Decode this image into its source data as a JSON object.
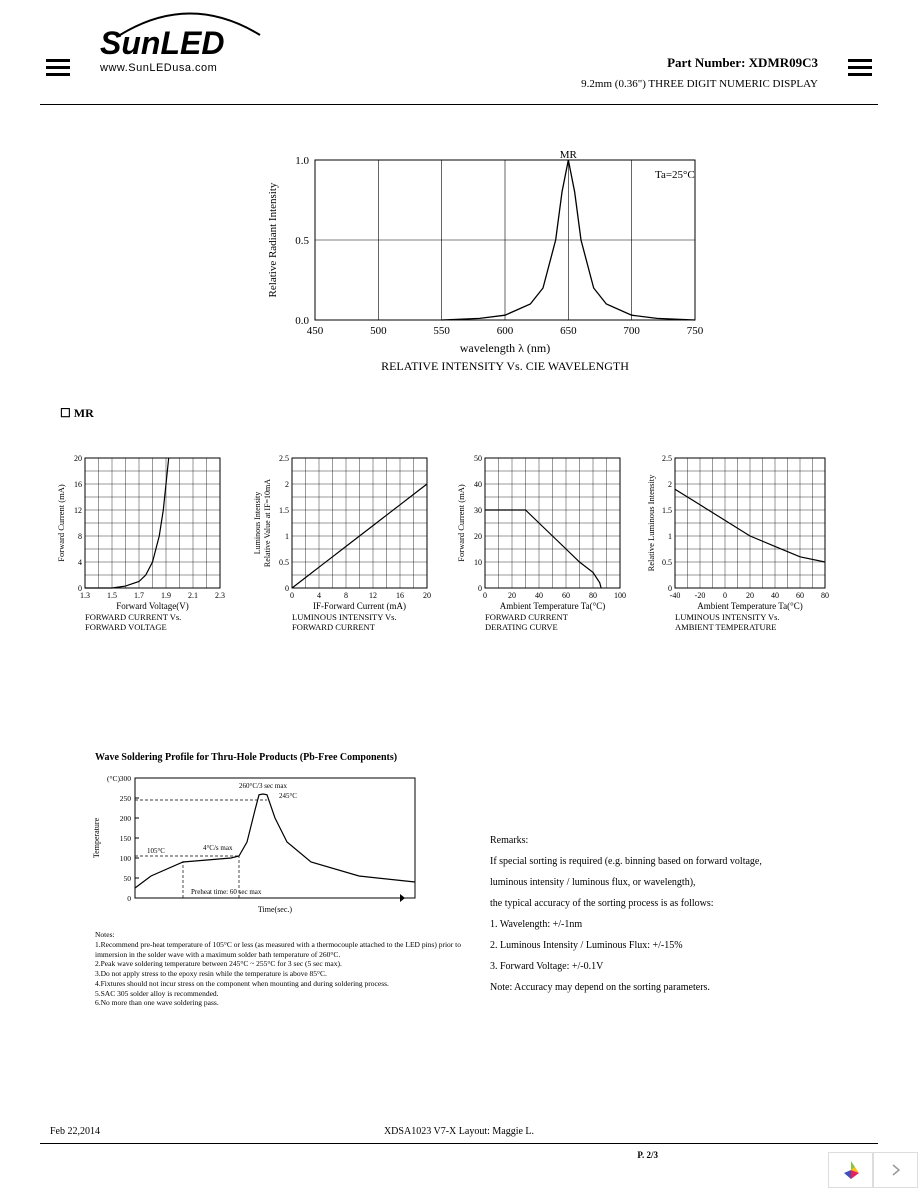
{
  "header": {
    "logo_main": "SunLED",
    "logo_url": "www.SunLEDusa.com",
    "part_label": "Part Number:",
    "part_number": "XDMR09C3",
    "part_desc": "9.2mm (0.36\") THREE DIGIT NUMERIC DISPLAY"
  },
  "section_mr": "MR",
  "chart_main": {
    "type": "line",
    "title": "RELATIVE INTENSITY Vs. CIE WAVELENGTH",
    "xlabel": "wavelength λ (nm)",
    "ylabel": "Relative Radiant Intensity",
    "xlim": [
      450,
      750
    ],
    "xtick_step": 50,
    "ylim": [
      0,
      1.0
    ],
    "ytick_step": 0.5,
    "annotation_peak": "MR",
    "annotation_ta": "Ta=25°C",
    "peak_x": 650,
    "curve": [
      [
        550,
        0
      ],
      [
        580,
        0.01
      ],
      [
        600,
        0.03
      ],
      [
        620,
        0.1
      ],
      [
        630,
        0.2
      ],
      [
        640,
        0.5
      ],
      [
        645,
        0.8
      ],
      [
        650,
        1.0
      ],
      [
        655,
        0.8
      ],
      [
        660,
        0.5
      ],
      [
        670,
        0.2
      ],
      [
        680,
        0.1
      ],
      [
        700,
        0.03
      ],
      [
        720,
        0.01
      ],
      [
        750,
        0
      ]
    ],
    "line_color": "#000000",
    "grid_color": "#000000",
    "background_color": "#ffffff"
  },
  "chart_iv": {
    "type": "line",
    "title1": "FORWARD CURRENT Vs.",
    "title2": "FORWARD VOLTAGE",
    "xlabel": "Forward Voltage(V)",
    "ylabel": "Forward Current (mA)",
    "xlim": [
      1.3,
      2.3
    ],
    "xticks": [
      1.3,
      1.5,
      1.7,
      1.9,
      2.1,
      2.3
    ],
    "ylim": [
      0,
      20
    ],
    "ytick_step": 4,
    "curve": [
      [
        1.3,
        0
      ],
      [
        1.5,
        0
      ],
      [
        1.6,
        0.3
      ],
      [
        1.7,
        1
      ],
      [
        1.75,
        2
      ],
      [
        1.8,
        4
      ],
      [
        1.85,
        8
      ],
      [
        1.88,
        12
      ],
      [
        1.9,
        16
      ],
      [
        1.92,
        20
      ]
    ],
    "line_color": "#000000"
  },
  "chart_li": {
    "type": "line",
    "title1": "LUMINOUS INTENSITY Vs.",
    "title2": "FORWARD CURRENT",
    "xlabel": "IF-Forward Current (mA)",
    "ylabel1": "Luminous Intensity",
    "ylabel2": "Relative Value at IF=10mA",
    "xlim": [
      0,
      20
    ],
    "xtick_step": 4,
    "ylim": [
      0,
      2.5
    ],
    "ytick_step": 0.5,
    "curve": [
      [
        0,
        0
      ],
      [
        2,
        0.2
      ],
      [
        4,
        0.4
      ],
      [
        6,
        0.6
      ],
      [
        8,
        0.8
      ],
      [
        10,
        1.0
      ],
      [
        12,
        1.2
      ],
      [
        14,
        1.4
      ],
      [
        16,
        1.6
      ],
      [
        18,
        1.8
      ],
      [
        20,
        2.0
      ]
    ],
    "line_color": "#000000"
  },
  "chart_derating": {
    "type": "line",
    "title1": "FORWARD CURRENT",
    "title2": "DERATING CURVE",
    "xlabel": "Ambient Temperature Ta(°C)",
    "ylabel": "Forward Current (mA)",
    "xlim": [
      0,
      100
    ],
    "xtick_step": 20,
    "ylim": [
      0,
      50
    ],
    "ytick_step": 10,
    "curve": [
      [
        0,
        30
      ],
      [
        25,
        30
      ],
      [
        30,
        30
      ],
      [
        40,
        25
      ],
      [
        50,
        20
      ],
      [
        60,
        15
      ],
      [
        70,
        10
      ],
      [
        80,
        6
      ],
      [
        85,
        2
      ],
      [
        86,
        0
      ]
    ],
    "line_color": "#000000"
  },
  "chart_temp": {
    "type": "line",
    "title1": "LUMINOUS INTENSITY Vs.",
    "title2": "AMBIENT TEMPERATURE",
    "xlabel": "Ambient Temperature Ta(°C)",
    "ylabel": "Relative Luminous Intensity",
    "xlim": [
      -40,
      80
    ],
    "xticks": [
      -40,
      -20,
      0,
      20,
      40,
      60,
      80
    ],
    "ylim": [
      0,
      2.5
    ],
    "ytick_step": 0.5,
    "curve": [
      [
        -40,
        1.9
      ],
      [
        -20,
        1.6
      ],
      [
        0,
        1.3
      ],
      [
        20,
        1.0
      ],
      [
        40,
        0.8
      ],
      [
        60,
        0.6
      ],
      [
        80,
        0.5
      ]
    ],
    "line_color": "#000000"
  },
  "soldering": {
    "title": "Wave Soldering Profile for Thru-Hole Products (Pb-Free Components)",
    "ylabel": "Temperature",
    "yunit": "(°C)",
    "xlabel": "Time(sec.)",
    "ylim": [
      0,
      300
    ],
    "ytick_step": 50,
    "ann_peak": "260°C/3 sec max",
    "ann_245": "245°C",
    "ann_rate": "4°C/s max",
    "ann_105": "105°C",
    "ann_preheat": "Preheat time: 60 sec max",
    "curve": [
      [
        0,
        25
      ],
      [
        20,
        55
      ],
      [
        60,
        90
      ],
      [
        120,
        100
      ],
      [
        130,
        105
      ],
      [
        140,
        140
      ],
      [
        150,
        220
      ],
      [
        155,
        258
      ],
      [
        160,
        260
      ],
      [
        165,
        258
      ],
      [
        175,
        200
      ],
      [
        190,
        140
      ],
      [
        220,
        90
      ],
      [
        280,
        55
      ],
      [
        350,
        40
      ]
    ],
    "line_color": "#000000"
  },
  "notes": {
    "heading": "Notes:",
    "items": [
      "1.Recommend pre-heat temperature of 105°C or less (as measured with a thermocouple attached to the LED pins) prior to immersion in the solder wave with a maximum solder bath temperature of 260°C.",
      "2.Peak wave soldering temperature between 245°C ~ 255°C for 3 sec (5 sec max).",
      "3.Do not apply stress to the epoxy resin while the temperature is above 85°C.",
      "4.Fixtures should not incur stress on the component when mounting and during soldering process.",
      "5.SAC 305 solder alloy is recommended.",
      "6.No more than one wave soldering pass."
    ]
  },
  "remarks": {
    "heading": "Remarks:",
    "lines": [
      "If special sorting is required (e.g. binning based on forward voltage,",
      "luminous intensity / luminous flux, or wavelength),",
      "the typical accuracy of the sorting process is as follows:",
      "1. Wavelength: +/-1nm",
      "2. Luminous Intensity / Luminous Flux: +/-15%",
      "3. Forward Voltage: +/-0.1V",
      "Note: Accuracy may depend on the sorting parameters."
    ]
  },
  "footer": {
    "date": "Feb 22,2014",
    "doc": "XDSA1023   V7-X   Layout: Maggie L.",
    "page": "P. 2/3"
  },
  "colors": {
    "text": "#000000",
    "bg": "#ffffff",
    "grid": "#000000"
  }
}
